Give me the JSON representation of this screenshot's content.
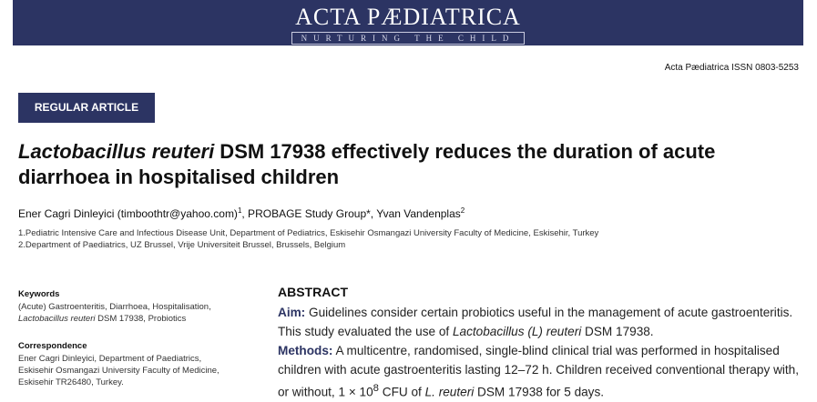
{
  "journal": {
    "name": "ACTA PÆDIATRICA",
    "tagline": "NURTURING THE CHILD",
    "issn_line": "Acta Pædiatrica ISSN 0803-5253"
  },
  "article": {
    "type": "REGULAR ARTICLE",
    "title_italic": "Lactobacillus reuteri",
    "title_rest": " DSM 17938 effectively reduces the duration of acute diarrhoea in hospitalised children",
    "authors": {
      "a1": "Ener Cagri Dinleyici (timboothtr@yahoo.com)",
      "a1_sup": "1",
      "a2": ", PROBAGE Study Group*, Yvan Vandenplas",
      "a2_sup": "2"
    },
    "affiliations": [
      "1.Pediatric Intensive Care and Infectious Disease Unit, Department of Pediatrics, Eskisehir Osmangazi University Faculty of Medicine, Eskisehir, Turkey",
      "2.Department of Paediatrics, UZ Brussel, Vrije Universiteit Brussel, Brussels, Belgium"
    ]
  },
  "keywords": {
    "heading": "Keywords",
    "line1": "(Acute) Gastroenteritis, Diarrhoea, Hospitalisation,",
    "line2_italic": "Lactobacillus reuteri",
    "line2_rest": " DSM 17938, Probiotics"
  },
  "correspondence": {
    "heading": "Correspondence",
    "lines": [
      "Ener Cagri Dinleyici, Department of Paediatrics,",
      "Eskisehir Osmangazi University Faculty of Medicine,",
      "Eskisehir TR26480, Turkey."
    ]
  },
  "abstract": {
    "heading": "ABSTRACT",
    "aim_label": "Aim:",
    "aim_text1": " Guidelines consider certain probiotics useful in the management of acute gastroenteritis. This study evaluated the use of ",
    "aim_italic": "Lactobacillus (L) reuteri",
    "aim_text2": " DSM 17938.",
    "methods_label": "Methods:",
    "methods_text1": " A multicentre, randomised, single-blind clinical trial was performed in hospitalised children with acute gastroenteritis lasting 12–72 h. Children received conventional therapy with, or without, 1 × 10",
    "methods_sup": "8",
    "methods_text2": " CFU of ",
    "methods_italic": "L. reuteri",
    "methods_text3": " DSM 17938 for 5 days."
  },
  "colors": {
    "banner": "#2c3463",
    "accent": "#2c3463"
  }
}
